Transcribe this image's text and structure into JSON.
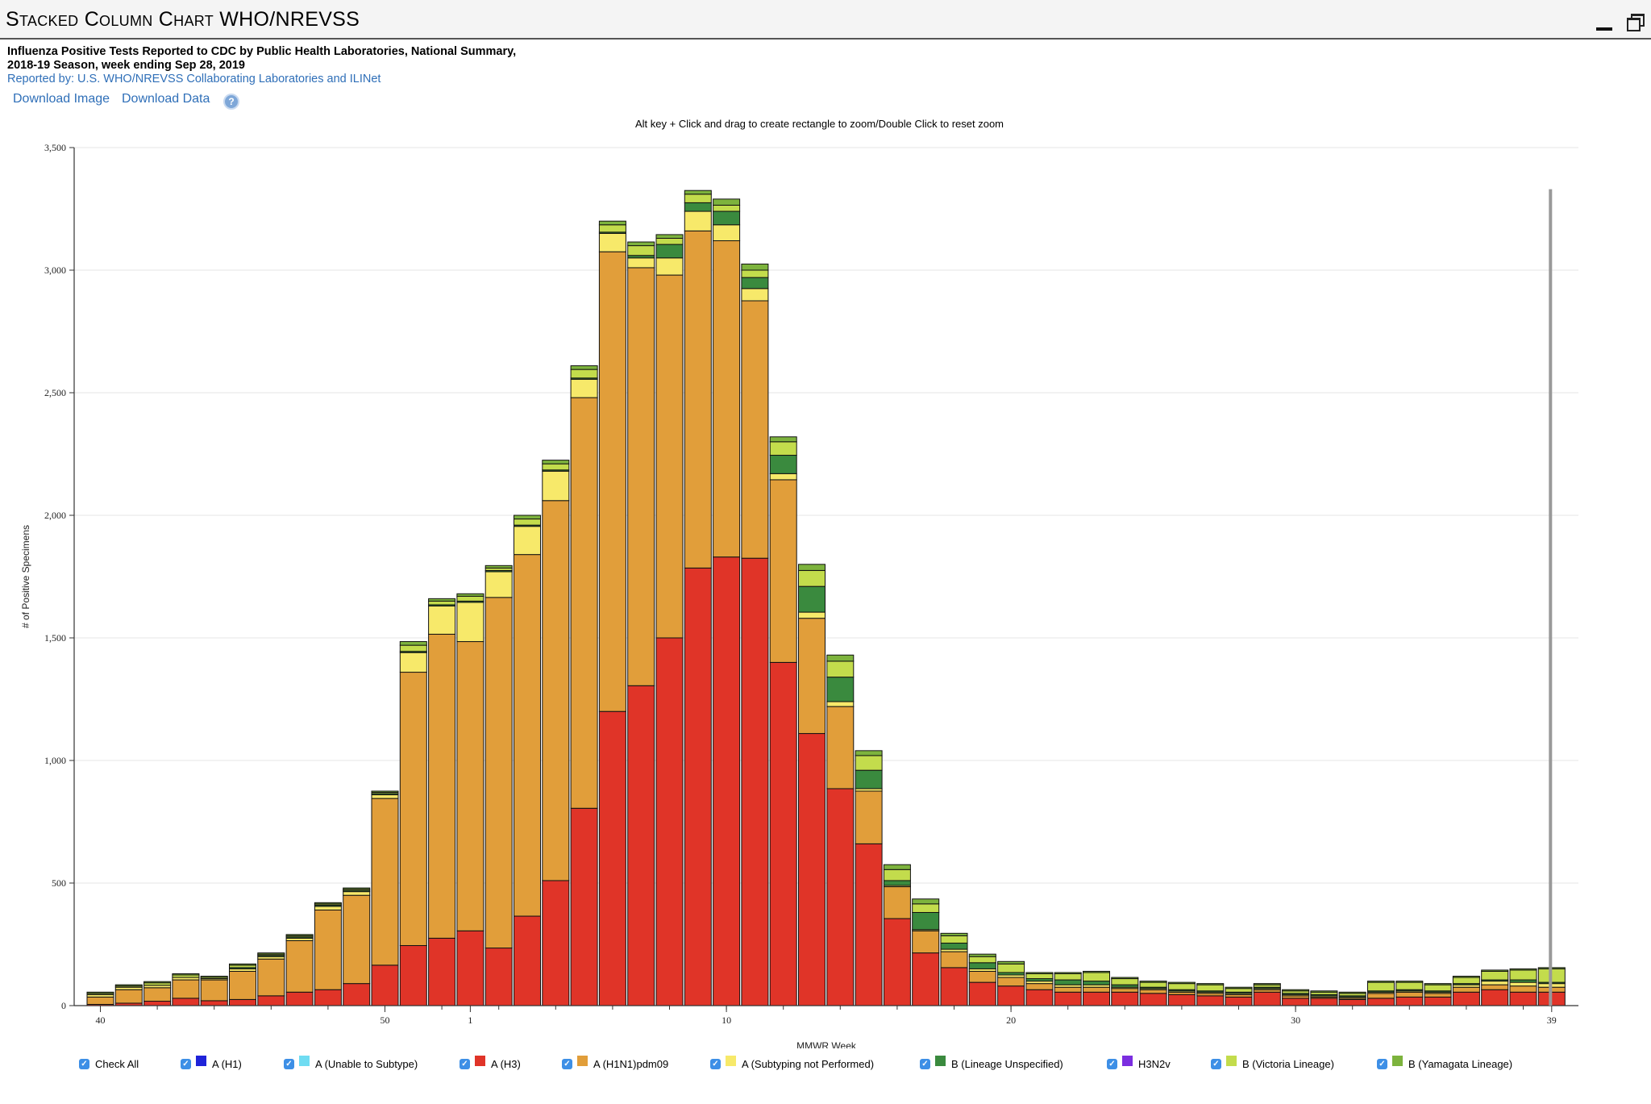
{
  "window": {
    "title": "Stacked Column Chart WHO/NREVSS"
  },
  "header": {
    "title_line1": "Influenza Positive Tests Reported to CDC by Public Health Laboratories, National Summary,",
    "title_line2": "2018-19 Season, week ending Sep 28, 2019",
    "reported_by": "Reported by: U.S. WHO/NREVSS Collaborating Laboratories and ILINet"
  },
  "toolbar": {
    "download_image": "Download Image",
    "download_data": "Download Data",
    "help": "?"
  },
  "zoom_hint": "Alt key + Click and drag to create rectangle to zoom/Double Click to reset zoom",
  "legend": {
    "check_all": "Check All",
    "items": [
      {
        "label": "A (H1)",
        "color": "#1f23d9"
      },
      {
        "label": "A (Unable to Subtype)",
        "color": "#6fdcf2"
      },
      {
        "label": "A (H3)",
        "color": "#e03428"
      },
      {
        "label": "A (H1N1)pdm09",
        "color": "#e19e3a"
      },
      {
        "label": "A (Subtyping not Performed)",
        "color": "#f7e96a"
      },
      {
        "label": "B (Lineage Unspecified)",
        "color": "#3a8a3e"
      },
      {
        "label": "H3N2v",
        "color": "#7b2ee0"
      },
      {
        "label": "B (Victoria Lineage)",
        "color": "#c3dc4c"
      },
      {
        "label": "B (Yamagata Lineage)",
        "color": "#7db33d"
      }
    ]
  },
  "chart_data": {
    "type": "bar",
    "stacked": true,
    "title": "",
    "xlabel": "MMWR Week",
    "ylabel": "# of Positive Specimens",
    "ylim": [
      0,
      3500
    ],
    "yticks": [
      0,
      500,
      1000,
      1500,
      2000,
      2500,
      3000,
      3500
    ],
    "ytick_labels": [
      "0",
      "500",
      "1,000",
      "1,500",
      "2,000",
      "2,500",
      "3,000",
      "3,500"
    ],
    "xtick_labels": [
      "40",
      "50",
      "1",
      "10",
      "20",
      "30",
      "39"
    ],
    "categories": [
      "40",
      "41",
      "42",
      "43",
      "44",
      "45",
      "46",
      "47",
      "48",
      "49",
      "50",
      "51",
      "52",
      "1",
      "2",
      "3",
      "4",
      "5",
      "6",
      "7",
      "8",
      "9",
      "10",
      "11",
      "12",
      "13",
      "14",
      "15",
      "16",
      "17",
      "18",
      "19",
      "20",
      "21",
      "22",
      "23",
      "24",
      "25",
      "26",
      "27",
      "28",
      "29",
      "30",
      "31",
      "32",
      "33",
      "34",
      "35",
      "36",
      "37",
      "38",
      "39"
    ],
    "current_week_marker": "39",
    "grid": true,
    "legend_position": "bottom",
    "series": [
      {
        "name": "A (H1)",
        "color": "#1f23d9",
        "values": [
          0,
          0,
          0,
          0,
          0,
          0,
          0,
          0,
          0,
          0,
          0,
          0,
          0,
          0,
          0,
          0,
          0,
          0,
          0,
          0,
          0,
          0,
          0,
          0,
          0,
          0,
          0,
          0,
          0,
          0,
          0,
          0,
          0,
          0,
          0,
          0,
          0,
          0,
          0,
          0,
          0,
          0,
          0,
          0,
          0,
          0,
          0,
          0,
          0,
          0,
          0,
          0
        ]
      },
      {
        "name": "A (H3)",
        "color": "#e03428",
        "values": [
          5,
          10,
          18,
          30,
          20,
          25,
          40,
          55,
          65,
          90,
          165,
          245,
          275,
          305,
          235,
          365,
          510,
          805,
          1200,
          1305,
          1500,
          1785,
          1830,
          1825,
          1400,
          1110,
          885,
          660,
          355,
          215,
          155,
          95,
          80,
          65,
          55,
          55,
          55,
          50,
          45,
          40,
          35,
          55,
          30,
          30,
          25,
          30,
          35,
          35,
          55,
          65,
          55,
          55
        ]
      },
      {
        "name": "A (H1N1)pdm09",
        "color": "#e19e3a",
        "values": [
          30,
          55,
          55,
          75,
          85,
          115,
          150,
          210,
          325,
          360,
          680,
          1115,
          1240,
          1180,
          1430,
          1475,
          1550,
          1675,
          1875,
          1705,
          1480,
          1375,
          1290,
          1050,
          745,
          470,
          335,
          215,
          130,
          90,
          65,
          45,
          35,
          25,
          20,
          20,
          15,
          15,
          10,
          10,
          10,
          10,
          10,
          5,
          5,
          20,
          20,
          15,
          20,
          20,
          25,
          20
        ]
      },
      {
        "name": "A (Subtyping not Performed)",
        "color": "#f7e96a",
        "values": [
          10,
          10,
          10,
          10,
          5,
          10,
          10,
          10,
          15,
          15,
          15,
          80,
          115,
          160,
          105,
          115,
          120,
          75,
          75,
          40,
          70,
          80,
          65,
          50,
          25,
          25,
          20,
          10,
          5,
          5,
          10,
          10,
          10,
          10,
          10,
          10,
          5,
          5,
          5,
          5,
          5,
          5,
          5,
          5,
          5,
          5,
          5,
          5,
          10,
          15,
          15,
          15
        ]
      },
      {
        "name": "B (Lineage Unspecified)",
        "color": "#3a8a3e",
        "values": [
          0,
          0,
          0,
          0,
          0,
          5,
          5,
          5,
          5,
          5,
          5,
          5,
          5,
          5,
          5,
          5,
          5,
          5,
          5,
          10,
          55,
          35,
          55,
          45,
          75,
          105,
          100,
          75,
          20,
          70,
          25,
          25,
          10,
          10,
          20,
          15,
          10,
          5,
          5,
          5,
          5,
          5,
          5,
          5,
          5,
          5,
          5,
          5,
          5,
          5,
          10,
          5
        ]
      },
      {
        "name": "H3N2v",
        "color": "#7b2ee0",
        "values": [
          0,
          0,
          0,
          0,
          0,
          0,
          0,
          0,
          0,
          0,
          0,
          0,
          0,
          0,
          0,
          0,
          0,
          0,
          0,
          0,
          0,
          0,
          0,
          0,
          0,
          0,
          0,
          0,
          0,
          0,
          0,
          0,
          0,
          0,
          0,
          0,
          0,
          0,
          0,
          0,
          0,
          0,
          0,
          0,
          0,
          0,
          0,
          0,
          0,
          0,
          0,
          0
        ]
      },
      {
        "name": "B (Victoria Lineage)",
        "color": "#c3dc4c",
        "values": [
          5,
          5,
          10,
          10,
          5,
          10,
          5,
          5,
          5,
          5,
          5,
          25,
          15,
          20,
          10,
          25,
          25,
          35,
          30,
          40,
          25,
          35,
          25,
          30,
          55,
          65,
          65,
          60,
          45,
          35,
          30,
          25,
          35,
          20,
          25,
          35,
          25,
          20,
          25,
          25,
          15,
          10,
          10,
          10,
          10,
          35,
          30,
          25,
          25,
          35,
          40,
          55
        ]
      },
      {
        "name": "B (Yamagata Lineage)",
        "color": "#7db33d",
        "values": [
          5,
          5,
          5,
          5,
          5,
          5,
          5,
          5,
          5,
          5,
          5,
          15,
          10,
          10,
          10,
          15,
          15,
          15,
          15,
          15,
          15,
          15,
          25,
          25,
          20,
          25,
          25,
          20,
          20,
          20,
          10,
          10,
          10,
          5,
          5,
          5,
          5,
          5,
          5,
          5,
          5,
          5,
          5,
          5,
          5,
          5,
          5,
          5,
          5,
          5,
          5,
          5
        ]
      }
    ]
  }
}
